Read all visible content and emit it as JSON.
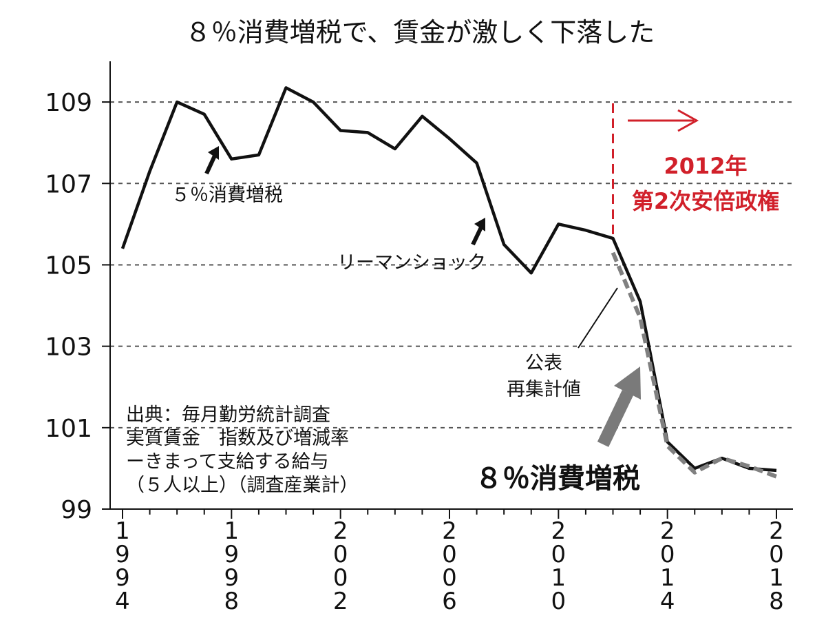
{
  "chart_data": {
    "type": "line",
    "title": "８％消費増税で、賃金が激しく下落した",
    "xlabel": "",
    "ylabel": "",
    "ylim": [
      99,
      110
    ],
    "xlim": [
      1994,
      2018
    ],
    "y_ticks": [
      99,
      101,
      103,
      105,
      107,
      109
    ],
    "y_tick_labels": [
      "99",
      "101",
      "103",
      "105",
      "107",
      "109"
    ],
    "x_ticks": [
      1994,
      1998,
      2002,
      2006,
      2010,
      2014,
      2018
    ],
    "x_tick_labels": [
      "1994",
      "1998",
      "2002",
      "2006",
      "2010",
      "2014",
      "2018"
    ],
    "grid": "horizontal dashed",
    "series": [
      {
        "key": "original",
        "color": "#111111",
        "style": "solid",
        "x": [
          1994,
          1995,
          1996,
          1997,
          1998,
          1999,
          2000,
          2001,
          2002,
          2003,
          2004,
          2005,
          2006,
          2007,
          2008,
          2009,
          2010,
          2011,
          2012,
          2013,
          2014,
          2015,
          2016,
          2017,
          2018
        ],
        "values": [
          105.4,
          107.3,
          109.0,
          108.7,
          107.6,
          107.7,
          109.35,
          109.0,
          108.3,
          108.25,
          107.85,
          108.65,
          108.1,
          107.5,
          105.5,
          104.8,
          106.0,
          105.85,
          105.65,
          104.1,
          100.65,
          100.0,
          100.25,
          100.0,
          99.95
        ]
      },
      {
        "key": "recomputed",
        "color": "#808080",
        "style": "dashed",
        "x": [
          2012,
          2013,
          2014,
          2015,
          2016,
          2017,
          2018
        ],
        "values": [
          105.3,
          103.7,
          100.55,
          99.9,
          100.25,
          100.05,
          99.8
        ]
      }
    ],
    "annotations": {
      "vat5": "５％消費増税",
      "lehman": "リーマンショック",
      "recount": [
        "公表",
        "再集計値"
      ],
      "vat8": "８％消費増税",
      "abe_year": "2012年",
      "abe_admin": "第2次安倍政権",
      "source": [
        "出典：毎月勤労統計調査",
        "実質賃金　指数及び増減率",
        "ーきまって支給する給与",
        "（５人以上）（調査産業計）"
      ]
    },
    "colors": {
      "accent": "#d1202a",
      "line": "#111111",
      "recount": "#808080",
      "grid": "#555555"
    }
  }
}
